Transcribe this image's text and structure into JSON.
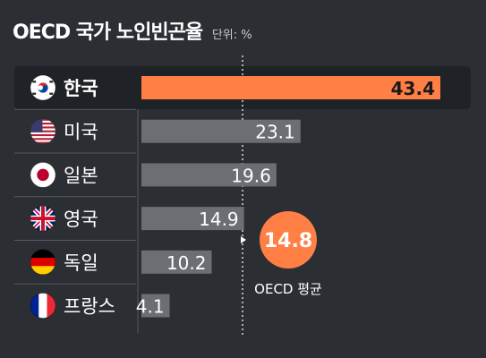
{
  "header": {
    "title": "OECD 국가 노인빈곤율",
    "unit": "단위: %"
  },
  "colors": {
    "background": "#2b2e33",
    "highlight_bar": "#ff7f45",
    "bar": "#6b6e72",
    "highlight_row": "#1f2227",
    "average_circle": "#ff7f45"
  },
  "chart_data": {
    "type": "bar",
    "orientation": "horizontal",
    "categories": [
      "한국",
      "미국",
      "일본",
      "영국",
      "독일",
      "프랑스"
    ],
    "flags": [
      "korea-flag-icon",
      "usa-flag-icon",
      "japan-flag-icon",
      "uk-flag-icon",
      "germany-flag-icon",
      "france-flag-icon"
    ],
    "values": [
      43.4,
      23.1,
      19.6,
      14.9,
      10.2,
      4.1
    ],
    "value_labels": [
      "43.4",
      "23.1",
      "19.6",
      "14.9",
      "10.2",
      "4.1"
    ],
    "highlight": "한국",
    "reference_line": {
      "value": 14.8,
      "label_value": "14.8",
      "label": "OECD 평균"
    },
    "xlim": [
      0,
      43.4
    ]
  }
}
